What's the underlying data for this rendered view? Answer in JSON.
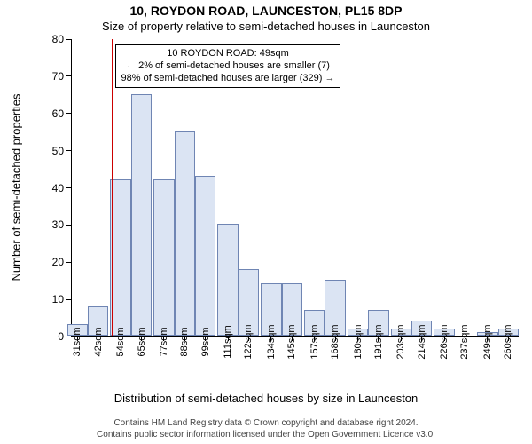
{
  "title": "10, ROYDON ROAD, LAUNCESTON, PL15 8DP",
  "subtitle": "Size of property relative to semi-detached houses in Launceston",
  "yaxis_title": "Number of semi-detached properties",
  "xaxis_title": "Distribution of semi-detached houses by size in Launceston",
  "chart": {
    "type": "histogram",
    "background_color": "#ffffff",
    "bar_fill": "#dbe4f3",
    "bar_border": "#6f85b3",
    "refline_color": "#cc0000",
    "axis_color": "#000000",
    "ylim": [
      0,
      80
    ],
    "ytick_step": 10,
    "bar_width_ratio": 1.0,
    "ref_x_value": 49,
    "x_min": 28,
    "x_max": 266,
    "categories": [
      "31sqm",
      "42sqm",
      "54sqm",
      "65sqm",
      "77sqm",
      "88sqm",
      "99sqm",
      "111sqm",
      "122sqm",
      "134sqm",
      "145sqm",
      "157sqm",
      "168sqm",
      "180sqm",
      "191sqm",
      "203sqm",
      "214sqm",
      "226sqm",
      "237sqm",
      "249sqm",
      "260sqm"
    ],
    "x_values": [
      31,
      42,
      54,
      65,
      77,
      88,
      99,
      111,
      122,
      134,
      145,
      157,
      168,
      180,
      191,
      203,
      214,
      226,
      237,
      249,
      260
    ],
    "values": [
      3,
      8,
      42,
      65,
      42,
      55,
      43,
      30,
      18,
      14,
      14,
      7,
      15,
      2,
      7,
      2,
      4,
      2,
      0,
      1,
      2
    ],
    "title_fontsize": 14,
    "subtitle_fontsize": 13,
    "axis_title_fontsize": 13,
    "tick_fontsize": 12,
    "xlabel_fontsize": 11
  },
  "annotation": {
    "line1": "10 ROYDON ROAD: 49sqm",
    "line2": "← 2% of semi-detached houses are smaller (7)",
    "line3": "98% of semi-detached houses are larger (329) →"
  },
  "footer": {
    "line1": "Contains HM Land Registry data © Crown copyright and database right 2024.",
    "line2": "Contains public sector information licensed under the Open Government Licence v3.0."
  }
}
